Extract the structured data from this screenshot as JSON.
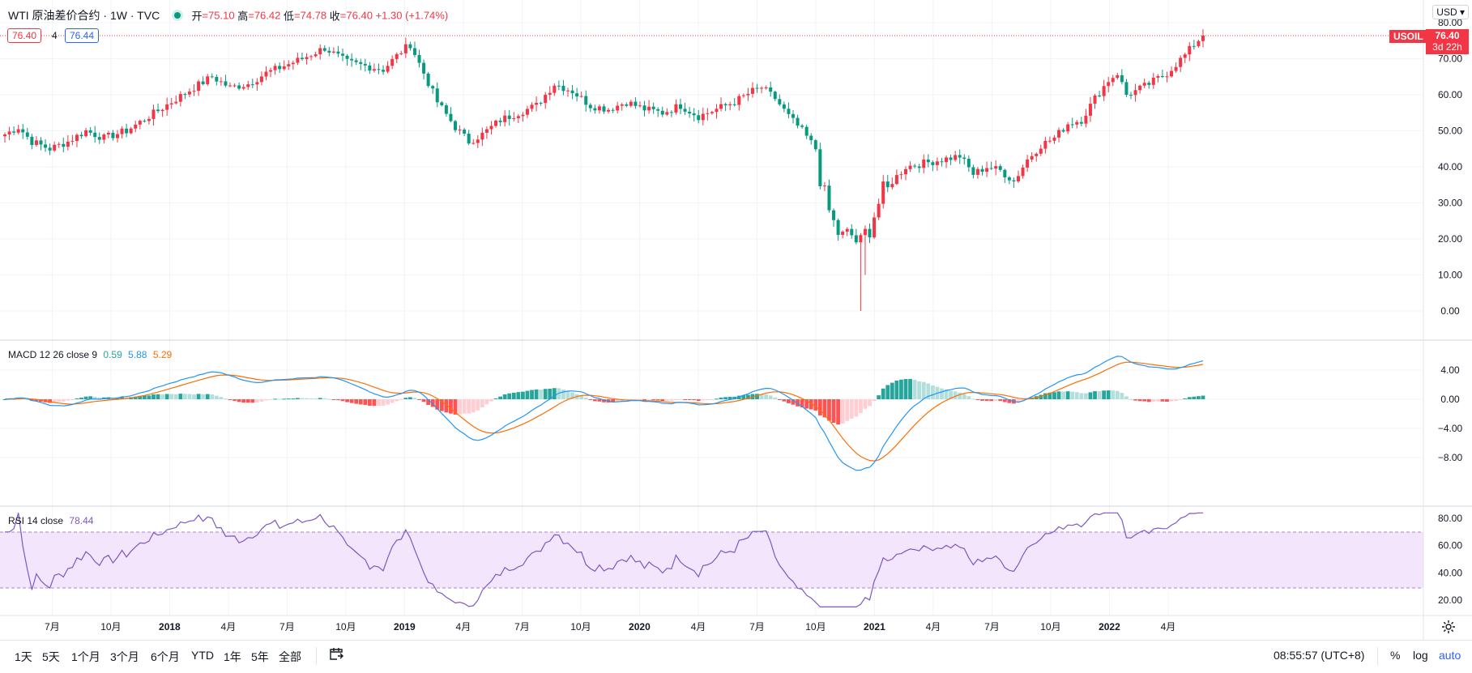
{
  "header": {
    "symbol": "WTI 原油差价合约 · 1W · TVC",
    "open_label": "开",
    "open": "75.10",
    "high_label": "高",
    "high": "76.42",
    "low_label": "低",
    "low": "74.78",
    "close_label": "收",
    "close": "76.40",
    "change": "+1.30 (+1.74%)",
    "bid": "76.40",
    "spread": "4",
    "ask": "76.44"
  },
  "price_scale": {
    "currency": "USD",
    "ticker_tag": "USOIL",
    "last_price": "76.40",
    "countdown": "3d 22h",
    "ticks": [
      "80.00",
      "70.00",
      "60.00",
      "50.00",
      "40.00",
      "30.00",
      "20.00",
      "10.00",
      "0.00"
    ]
  },
  "macd": {
    "label": "MACD 12 26 close 9",
    "v1": "0.59",
    "v2": "5.88",
    "v3": "5.29",
    "ticks": [
      "4.00",
      "0.00",
      "−4.00",
      "−8.00"
    ]
  },
  "rsi": {
    "label": "RSI 14 close",
    "value": "78.44",
    "ticks": [
      "80.00",
      "60.00",
      "40.00",
      "20.00"
    ]
  },
  "time_axis": [
    "7月",
    "10月",
    "2018",
    "4月",
    "7月",
    "10月",
    "2019",
    "4月",
    "7月",
    "10月",
    "2020",
    "4月",
    "7月",
    "10月",
    "2021",
    "4月",
    "7月",
    "10月",
    "2022",
    "4月"
  ],
  "toolbar": {
    "ranges": [
      "1天",
      "5天",
      "1个月",
      "3个月",
      "6个月",
      "YTD",
      "1年",
      "5年",
      "全部"
    ],
    "goto_icon": "calendar-goto-icon",
    "clock": "08:55:57 (UTC+8)",
    "percent": "%",
    "log": "log",
    "auto": "auto"
  },
  "colors": {
    "up": "#f23645",
    "down": "#089981",
    "macd_line": "#2196f3",
    "signal_line": "#ff6d00",
    "rsi_line": "#7e57c2",
    "rsi_band": "#f3e5fc"
  },
  "chart_data": {
    "type": "candlestick",
    "interval": "1W",
    "price_range": [
      -7,
      81
    ],
    "weekly_close_anchors": [
      {
        "t": 0,
        "v": 49
      },
      {
        "t": 3,
        "v": 51
      },
      {
        "t": 6,
        "v": 47
      },
      {
        "t": 10,
        "v": 45
      },
      {
        "t": 14,
        "v": 47
      },
      {
        "t": 18,
        "v": 50
      },
      {
        "t": 22,
        "v": 48
      },
      {
        "t": 27,
        "v": 50
      },
      {
        "t": 32,
        "v": 54
      },
      {
        "t": 37,
        "v": 58
      },
      {
        "t": 42,
        "v": 62
      },
      {
        "t": 46,
        "v": 65
      },
      {
        "t": 50,
        "v": 62
      },
      {
        "t": 54,
        "v": 63
      },
      {
        "t": 58,
        "v": 66
      },
      {
        "t": 62,
        "v": 68
      },
      {
        "t": 66,
        "v": 70
      },
      {
        "t": 71,
        "v": 73
      },
      {
        "t": 76,
        "v": 69
      },
      {
        "t": 80,
        "v": 68
      },
      {
        "t": 84,
        "v": 67
      },
      {
        "t": 88,
        "v": 72
      },
      {
        "t": 90,
        "v": 74
      },
      {
        "t": 93,
        "v": 66
      },
      {
        "t": 96,
        "v": 58
      },
      {
        "t": 100,
        "v": 51
      },
      {
        "t": 103,
        "v": 47
      },
      {
        "t": 106,
        "v": 49
      },
      {
        "t": 110,
        "v": 53
      },
      {
        "t": 114,
        "v": 55
      },
      {
        "t": 118,
        "v": 57
      },
      {
        "t": 122,
        "v": 63
      },
      {
        "t": 126,
        "v": 61
      },
      {
        "t": 130,
        "v": 57
      },
      {
        "t": 134,
        "v": 56
      },
      {
        "t": 138,
        "v": 58
      },
      {
        "t": 142,
        "v": 56
      },
      {
        "t": 146,
        "v": 55
      },
      {
        "t": 150,
        "v": 57
      },
      {
        "t": 154,
        "v": 54
      },
      {
        "t": 158,
        "v": 56
      },
      {
        "t": 162,
        "v": 58
      },
      {
        "t": 166,
        "v": 61
      },
      {
        "t": 168,
        "v": 62
      },
      {
        "t": 171,
        "v": 59
      },
      {
        "t": 174,
        "v": 54
      },
      {
        "t": 177,
        "v": 50
      },
      {
        "t": 180,
        "v": 45
      },
      {
        "t": 182,
        "v": 31
      },
      {
        "t": 184,
        "v": 24
      },
      {
        "t": 186,
        "v": 20
      },
      {
        "t": 188,
        "v": 21
      },
      {
        "t": 190,
        "v": 18
      },
      {
        "t": 192,
        "v": 24
      },
      {
        "t": 194,
        "v": 30
      },
      {
        "t": 197,
        "v": 36
      },
      {
        "t": 200,
        "v": 40
      },
      {
        "t": 204,
        "v": 41
      },
      {
        "t": 208,
        "v": 42
      },
      {
        "t": 212,
        "v": 43
      },
      {
        "t": 215,
        "v": 38
      },
      {
        "t": 218,
        "v": 40
      },
      {
        "t": 221,
        "v": 39
      },
      {
        "t": 224,
        "v": 36
      },
      {
        "t": 227,
        "v": 42
      },
      {
        "t": 230,
        "v": 46
      },
      {
        "t": 233,
        "v": 48
      },
      {
        "t": 236,
        "v": 52
      },
      {
        "t": 239,
        "v": 53
      },
      {
        "t": 242,
        "v": 59
      },
      {
        "t": 245,
        "v": 64
      },
      {
        "t": 247,
        "v": 66
      },
      {
        "t": 249,
        "v": 60
      },
      {
        "t": 251,
        "v": 61
      },
      {
        "t": 254,
        "v": 63
      },
      {
        "t": 258,
        "v": 66
      },
      {
        "t": 262,
        "v": 71
      },
      {
        "t": 264,
        "v": 74
      },
      {
        "t": 266,
        "v": 76.4
      }
    ],
    "spike_lows": [
      {
        "t": 190,
        "v": 0.0
      },
      {
        "t": 191,
        "v": 10.0
      }
    ],
    "indicators": {
      "macd": {
        "fast": 12,
        "slow": 26,
        "signal": 9,
        "source": "close",
        "last": [
          0.59,
          5.88,
          5.29
        ],
        "range": [
          -10.5,
          7.2
        ]
      },
      "rsi": {
        "length": 14,
        "source": "close",
        "last": 78.44,
        "range": [
          12,
          86
        ],
        "bands": [
          30,
          70
        ]
      }
    }
  }
}
